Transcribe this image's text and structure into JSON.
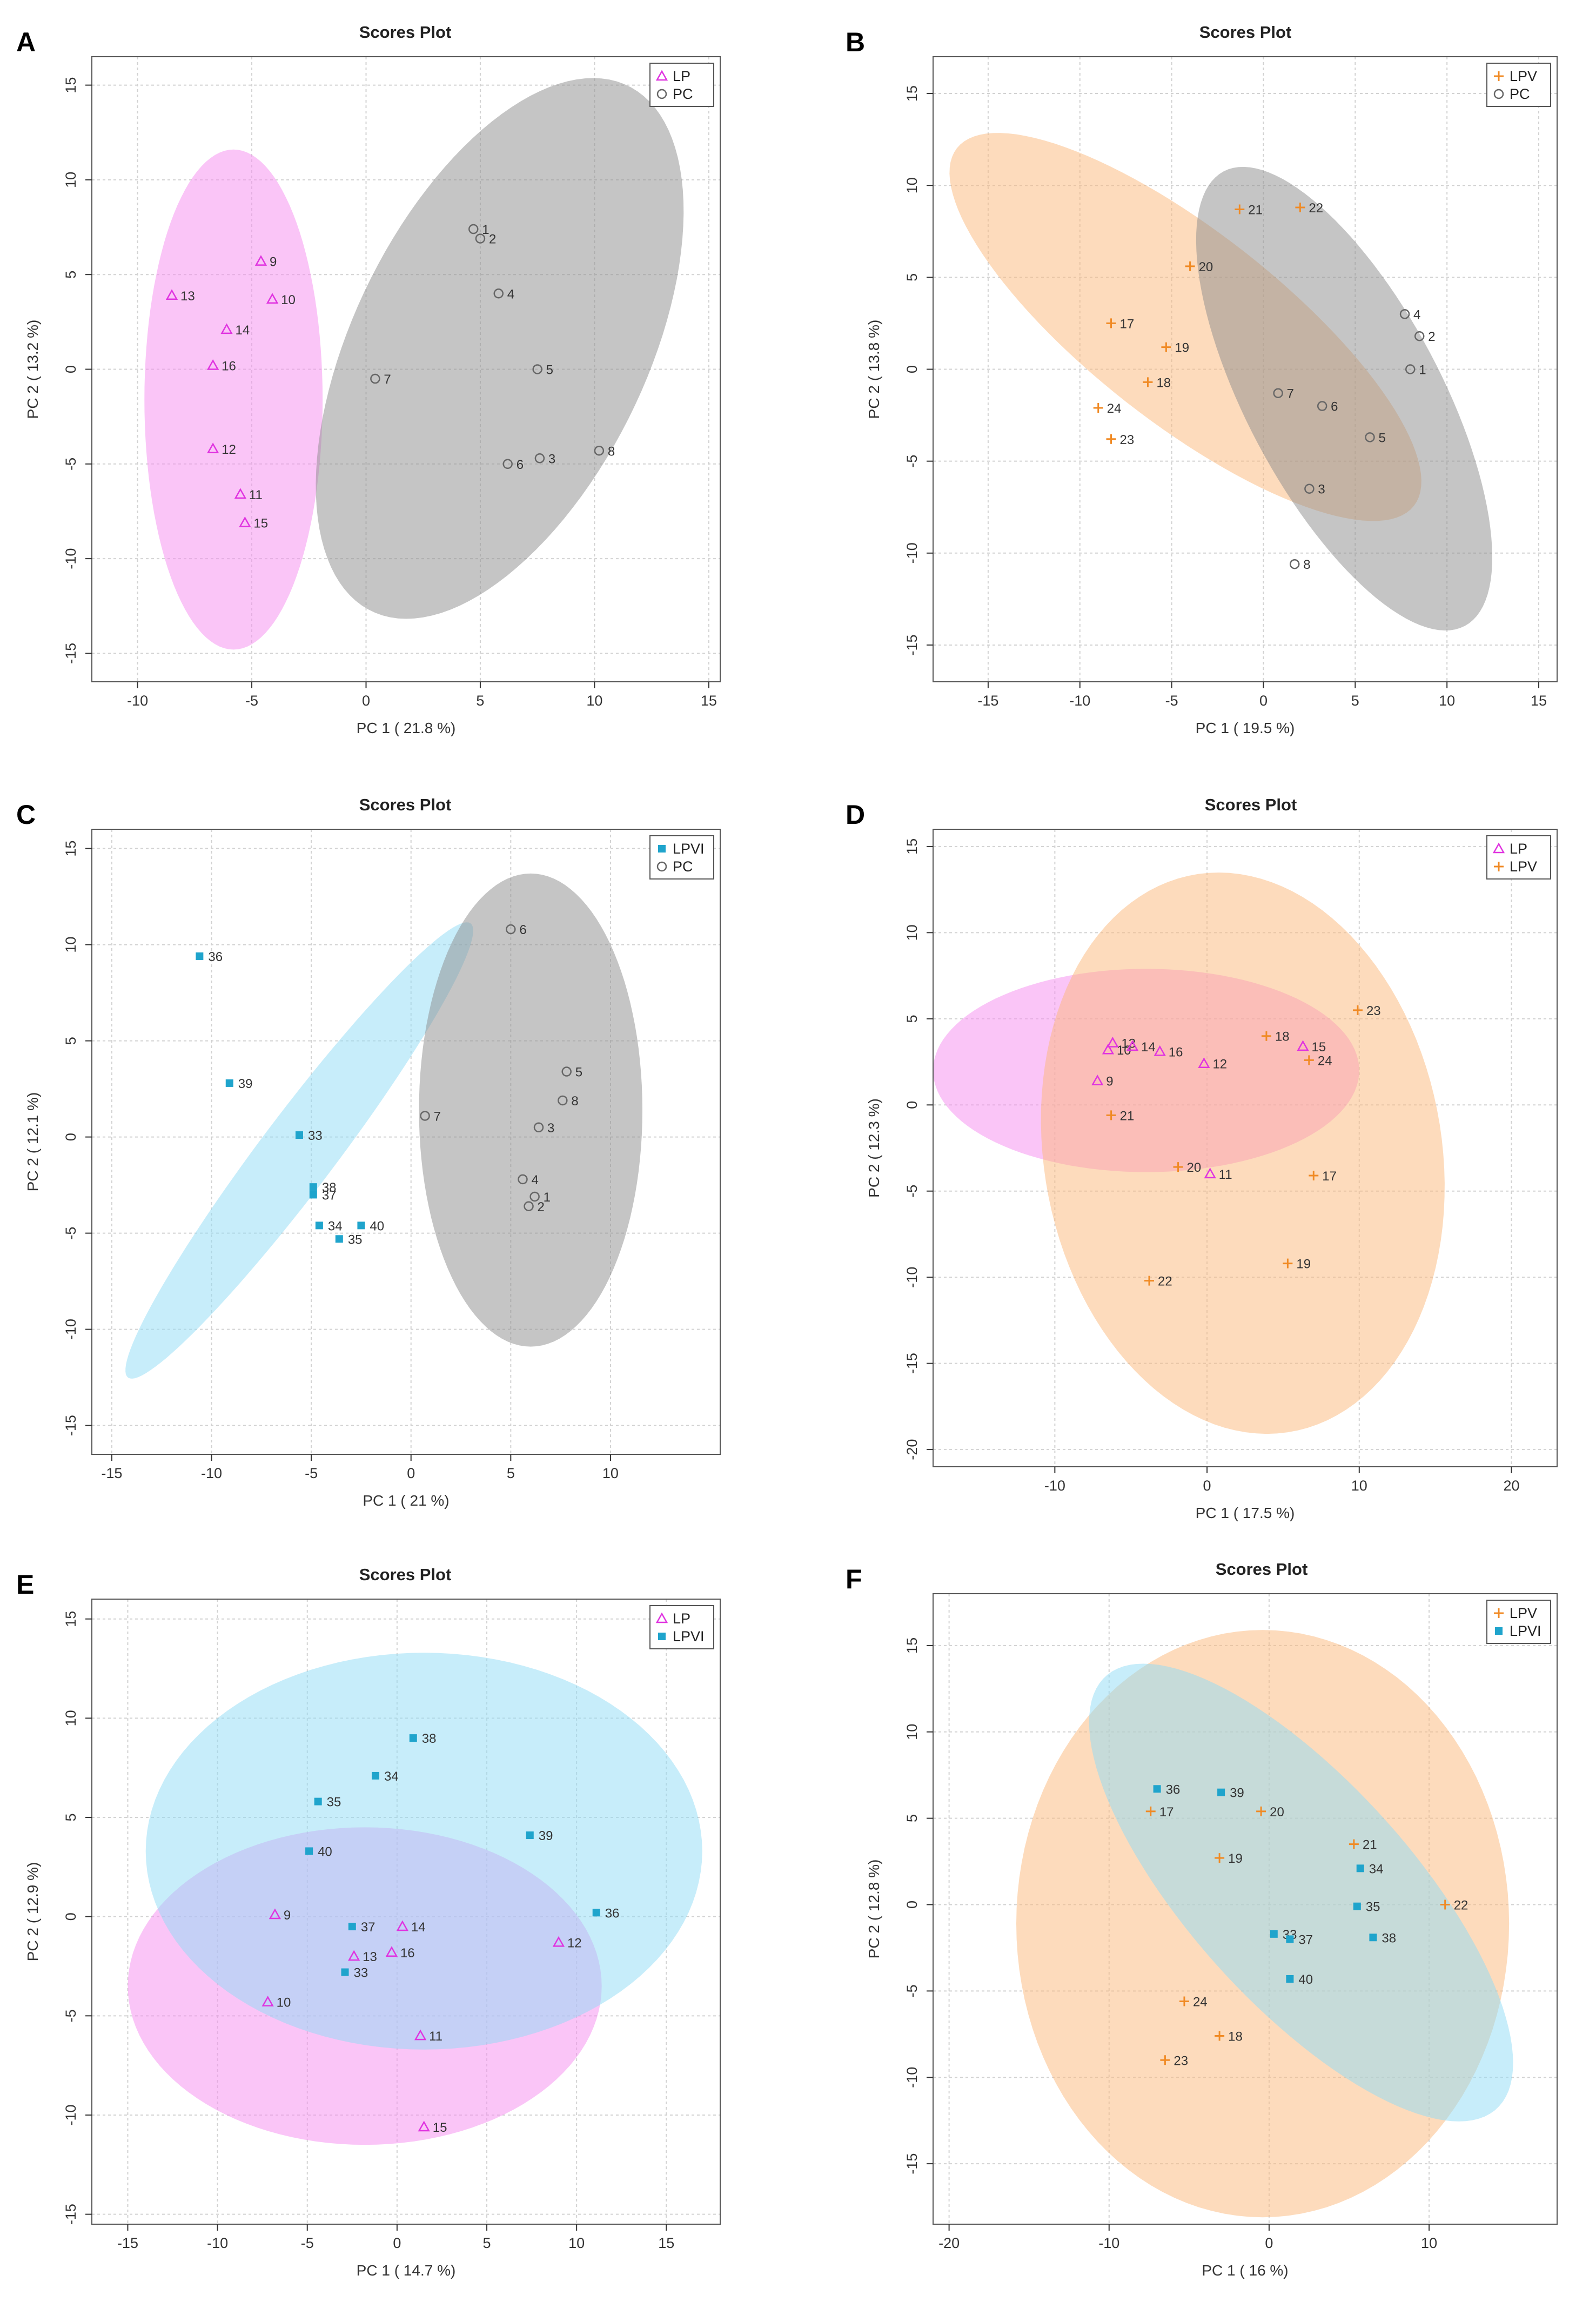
{
  "chart_data": [
    {
      "panel": "A",
      "type": "scatter",
      "title": "Scores Plot",
      "xlabel": "PC 1 ( 21.8 %)",
      "ylabel": "PC 2 ( 13.2 %)",
      "xlim": [
        -12,
        15.5
      ],
      "ylim": [
        -16.5,
        16.5
      ],
      "xticks": [
        -10,
        -5,
        0,
        5,
        10,
        15
      ],
      "yticks": [
        -15,
        -10,
        -5,
        0,
        5,
        10,
        15
      ],
      "grid": true,
      "legend_position": "top-right",
      "series": [
        {
          "name": "LP",
          "marker": "triangle",
          "color": "#e033e0",
          "ellipse_color": "#f58cf0",
          "points": [
            {
              "label": "9",
              "x": -4.6,
              "y": 5.7
            },
            {
              "label": "13",
              "x": -8.5,
              "y": 3.9
            },
            {
              "label": "10",
              "x": -4.1,
              "y": 3.7
            },
            {
              "label": "14",
              "x": -6.1,
              "y": 2.1
            },
            {
              "label": "16",
              "x": -6.7,
              "y": 0.2
            },
            {
              "label": "12",
              "x": -6.7,
              "y": -4.2
            },
            {
              "label": "11",
              "x": -5.5,
              "y": -6.6
            },
            {
              "label": "15",
              "x": -5.3,
              "y": -8.1
            }
          ],
          "ellipse": {
            "cx": -5.8,
            "cy": -1.6,
            "rx": 3.9,
            "ry": 13.2,
            "angle": 0
          }
        },
        {
          "name": "PC",
          "marker": "circle",
          "color": "#666666",
          "ellipse_color": "#8c8c8c",
          "points": [
            {
              "label": "1",
              "x": 4.7,
              "y": 7.4
            },
            {
              "label": "2",
              "x": 5.0,
              "y": 6.9
            },
            {
              "label": "4",
              "x": 5.8,
              "y": 4.0
            },
            {
              "label": "7",
              "x": 0.4,
              "y": -0.5
            },
            {
              "label": "5",
              "x": 7.5,
              "y": 0.0
            },
            {
              "label": "6",
              "x": 6.2,
              "y": -5.0
            },
            {
              "label": "3",
              "x": 7.6,
              "y": -4.7
            },
            {
              "label": "8",
              "x": 10.2,
              "y": -4.3
            }
          ],
          "ellipse": {
            "cx": 5.85,
            "cy": 1.1,
            "rx": 15.0,
            "ry": 6.6,
            "angle": 70
          }
        }
      ]
    },
    {
      "panel": "B",
      "type": "scatter",
      "title": "Scores Plot",
      "xlabel": "PC 1 ( 19.5 %)",
      "ylabel": "PC 2 ( 13.8 %)",
      "xlim": [
        -18,
        16
      ],
      "ylim": [
        -17,
        17
      ],
      "xticks": [
        -15,
        -10,
        -5,
        0,
        5,
        10,
        15
      ],
      "yticks": [
        -15,
        -10,
        -5,
        0,
        5,
        10,
        15
      ],
      "grid": true,
      "legend_position": "top-right",
      "series": [
        {
          "name": "LPV",
          "marker": "plus",
          "color": "#f08a24",
          "ellipse_color": "#fbb87a",
          "points": [
            {
              "label": "21",
              "x": -1.3,
              "y": 8.7
            },
            {
              "label": "22",
              "x": 2.0,
              "y": 8.8
            },
            {
              "label": "20",
              "x": -4.0,
              "y": 5.6
            },
            {
              "label": "17",
              "x": -8.3,
              "y": 2.5
            },
            {
              "label": "19",
              "x": -5.3,
              "y": 1.2
            },
            {
              "label": "18",
              "x": -6.3,
              "y": -0.7
            },
            {
              "label": "24",
              "x": -9.0,
              "y": -2.1
            },
            {
              "label": "23",
              "x": -8.3,
              "y": -3.8
            }
          ],
          "ellipse": {
            "cx": -4.25,
            "cy": 2.3,
            "rx": 15.8,
            "ry": 5.2,
            "angle": -38
          }
        },
        {
          "name": "PC",
          "marker": "circle",
          "color": "#666666",
          "ellipse_color": "#8c8c8c",
          "points": [
            {
              "label": "4",
              "x": 7.7,
              "y": 3.0
            },
            {
              "label": "2",
              "x": 8.5,
              "y": 1.8
            },
            {
              "label": "1",
              "x": 8.0,
              "y": 0.0
            },
            {
              "label": "7",
              "x": 0.8,
              "y": -1.3
            },
            {
              "label": "6",
              "x": 3.2,
              "y": -2.0
            },
            {
              "label": "5",
              "x": 5.8,
              "y": -3.7
            },
            {
              "label": "3",
              "x": 2.5,
              "y": -6.5
            },
            {
              "label": "8",
              "x": 1.7,
              "y": -10.6
            }
          ],
          "ellipse": {
            "cx": 4.4,
            "cy": -1.6,
            "rx": 14.0,
            "ry": 5.3,
            "angle": -62
          }
        }
      ]
    },
    {
      "panel": "C",
      "type": "scatter",
      "title": "Scores Plot",
      "xlabel": "PC 1 ( 21 %)",
      "ylabel": "PC 2 ( 12.1 %)",
      "xlim": [
        -16,
        15.5
      ],
      "ylim": [
        -16.5,
        16
      ],
      "xticks": [
        -15,
        -10,
        -5,
        0,
        5,
        10
      ],
      "yticks": [
        -15,
        -10,
        -5,
        0,
        5,
        10,
        15
      ],
      "grid": true,
      "legend_position": "top-right",
      "series": [
        {
          "name": "LPVI",
          "marker": "square",
          "color": "#1fa4cc",
          "ellipse_color": "#8fdcf5",
          "points": [
            {
              "label": "36",
              "x": -10.6,
              "y": 9.4
            },
            {
              "label": "39",
              "x": -9.1,
              "y": 2.8
            },
            {
              "label": "33",
              "x": -5.6,
              "y": 0.1
            },
            {
              "label": "38",
              "x": -4.9,
              "y": -2.6
            },
            {
              "label": "37",
              "x": -4.9,
              "y": -3.0
            },
            {
              "label": "34",
              "x": -4.6,
              "y": -4.6
            },
            {
              "label": "40",
              "x": -2.5,
              "y": -4.6
            },
            {
              "label": "35",
              "x": -3.6,
              "y": -5.3
            }
          ],
          "ellipse": {
            "cx": -5.6,
            "cy": -0.7,
            "rx": 14.6,
            "ry": 1.9,
            "angle": 54
          }
        },
        {
          "name": "PC",
          "marker": "circle",
          "color": "#666666",
          "ellipse_color": "#8c8c8c",
          "points": [
            {
              "label": "6",
              "x": 5.0,
              "y": 10.8
            },
            {
              "label": "5",
              "x": 7.8,
              "y": 3.4
            },
            {
              "label": "8",
              "x": 7.6,
              "y": 1.9
            },
            {
              "label": "7",
              "x": 0.7,
              "y": 1.1
            },
            {
              "label": "3",
              "x": 6.4,
              "y": 0.5
            },
            {
              "label": "4",
              "x": 5.6,
              "y": -2.2
            },
            {
              "label": "1",
              "x": 6.2,
              "y": -3.1
            },
            {
              "label": "2",
              "x": 5.9,
              "y": -3.6
            }
          ],
          "ellipse": {
            "cx": 6.0,
            "cy": 1.4,
            "rx": 5.6,
            "ry": 12.3,
            "angle": 0
          }
        }
      ]
    },
    {
      "panel": "D",
      "type": "scatter",
      "title": "Scores Plot",
      "xlabel": "PC 1 ( 17.5 %)",
      "ylabel": "PC 2 ( 12.3 %)",
      "xlim": [
        -18,
        23
      ],
      "ylim": [
        -21,
        16
      ],
      "xticks": [
        -10,
        0,
        10,
        20
      ],
      "yticks": [
        -20,
        -15,
        -10,
        -5,
        0,
        5,
        10,
        15
      ],
      "grid": true,
      "legend_position": "top-right",
      "series": [
        {
          "name": "LP",
          "marker": "triangle",
          "color": "#e033e0",
          "ellipse_color": "#f58cf0",
          "points": [
            {
              "label": "13",
              "x": -6.2,
              "y": 3.6
            },
            {
              "label": "10",
              "x": -6.5,
              "y": 3.2
            },
            {
              "label": "14",
              "x": -4.9,
              "y": 3.4
            },
            {
              "label": "16",
              "x": -3.1,
              "y": 3.1
            },
            {
              "label": "12",
              "x": -0.2,
              "y": 2.4
            },
            {
              "label": "15",
              "x": 6.3,
              "y": 3.4
            },
            {
              "label": "9",
              "x": -7.2,
              "y": 1.4
            },
            {
              "label": "11",
              "x": 0.2,
              "y": -4.0
            }
          ],
          "ellipse": {
            "cx": -4.0,
            "cy": 2.0,
            "rx": 14.0,
            "ry": 5.9,
            "angle": 0
          }
        },
        {
          "name": "LPV",
          "marker": "plus",
          "color": "#f08a24",
          "ellipse_color": "#fbb87a",
          "points": [
            {
              "label": "23",
              "x": 9.9,
              "y": 5.5
            },
            {
              "label": "18",
              "x": 3.9,
              "y": 4.0
            },
            {
              "label": "24",
              "x": 6.7,
              "y": 2.6
            },
            {
              "label": "21",
              "x": -6.3,
              "y": -0.6
            },
            {
              "label": "20",
              "x": -1.9,
              "y": -3.6
            },
            {
              "label": "17",
              "x": 7.0,
              "y": -4.1
            },
            {
              "label": "19",
              "x": 5.3,
              "y": -9.2
            },
            {
              "label": "22",
              "x": -3.8,
              "y": -10.2
            }
          ],
          "ellipse": {
            "cx": 2.35,
            "cy": -2.8,
            "rx": 16.5,
            "ry": 13.0,
            "angle": -75
          }
        }
      ]
    },
    {
      "panel": "E",
      "type": "scatter",
      "title": "Scores Plot",
      "xlabel": "PC 1 ( 14.7 %)",
      "ylabel": "PC 2 ( 12.9 %)",
      "xlim": [
        -17,
        18
      ],
      "ylim": [
        -15.5,
        16
      ],
      "xticks": [
        -15,
        -10,
        -5,
        0,
        5,
        10,
        15
      ],
      "yticks": [
        -15,
        -10,
        -5,
        0,
        5,
        10,
        15
      ],
      "grid": true,
      "legend_position": "top-right",
      "series": [
        {
          "name": "LP",
          "marker": "triangle",
          "color": "#e033e0",
          "ellipse_color": "#f58cf0",
          "points": [
            {
              "label": "9",
              "x": -6.8,
              "y": 0.1
            },
            {
              "label": "14",
              "x": 0.3,
              "y": -0.5
            },
            {
              "label": "12",
              "x": 9.0,
              "y": -1.3
            },
            {
              "label": "13",
              "x": -2.4,
              "y": -2.0
            },
            {
              "label": "16",
              "x": -0.3,
              "y": -1.8
            },
            {
              "label": "10",
              "x": -7.2,
              "y": -4.3
            },
            {
              "label": "11",
              "x": 1.3,
              "y": -6.0
            },
            {
              "label": "15",
              "x": 1.5,
              "y": -10.6
            }
          ],
          "ellipse": {
            "cx": -1.8,
            "cy": -3.5,
            "rx": 13.2,
            "ry": 8.0,
            "angle": 0
          }
        },
        {
          "name": "LPVI",
          "marker": "square",
          "color": "#1fa4cc",
          "ellipse_color": "#8fdcf5",
          "points": [
            {
              "label": "38",
              "x": 0.9,
              "y": 9.0
            },
            {
              "label": "34",
              "x": -1.2,
              "y": 7.1
            },
            {
              "label": "35",
              "x": -4.4,
              "y": 5.8
            },
            {
              "label": "39",
              "x": 7.4,
              "y": 4.1
            },
            {
              "label": "40",
              "x": -4.9,
              "y": 3.3
            },
            {
              "label": "36",
              "x": 11.1,
              "y": 0.2
            },
            {
              "label": "37",
              "x": -2.5,
              "y": -0.5
            },
            {
              "label": "33",
              "x": -2.9,
              "y": -2.8
            }
          ],
          "ellipse": {
            "cx": 1.5,
            "cy": 3.3,
            "rx": 15.5,
            "ry": 10.0,
            "angle": 0
          }
        }
      ]
    },
    {
      "panel": "F",
      "type": "scatter",
      "title": "Scores Plot",
      "xlabel": "PC 1 ( 16 %)",
      "ylabel": "PC 2 ( 12.8 %)",
      "xlim": [
        -21,
        18
      ],
      "ylim": [
        -18.5,
        18
      ],
      "xticks": [
        -20,
        -10,
        0,
        10
      ],
      "yticks": [
        -15,
        -10,
        -5,
        0,
        5,
        10,
        15
      ],
      "grid": true,
      "legend_position": "top-right",
      "series": [
        {
          "name": "LPV",
          "marker": "plus",
          "color": "#f08a24",
          "ellipse_color": "#fbb87a",
          "points": [
            {
              "label": "17",
              "x": -7.4,
              "y": 5.4
            },
            {
              "label": "20",
              "x": -0.5,
              "y": 5.4
            },
            {
              "label": "21",
              "x": 5.3,
              "y": 3.5
            },
            {
              "label": "19",
              "x": -3.1,
              "y": 2.7
            },
            {
              "label": "22",
              "x": 11.0,
              "y": 0.0
            },
            {
              "label": "24",
              "x": -5.3,
              "y": -5.6
            },
            {
              "label": "18",
              "x": -3.1,
              "y": -7.6
            },
            {
              "label": "23",
              "x": -6.5,
              "y": -9.0
            }
          ],
          "ellipse": {
            "cx": -0.4,
            "cy": -1.1,
            "rx": 15.4,
            "ry": 17.0,
            "angle": 0
          }
        },
        {
          "name": "LPVI",
          "marker": "square",
          "color": "#1fa4cc",
          "ellipse_color": "#8fdcf5",
          "points": [
            {
              "label": "36",
              "x": -7.0,
              "y": 6.7
            },
            {
              "label": "39",
              "x": -3.0,
              "y": 6.5
            },
            {
              "label": "34",
              "x": 5.7,
              "y": 2.1
            },
            {
              "label": "35",
              "x": 5.5,
              "y": -0.1
            },
            {
              "label": "33",
              "x": 0.3,
              "y": -1.7
            },
            {
              "label": "37",
              "x": 1.3,
              "y": -2.0
            },
            {
              "label": "38",
              "x": 6.5,
              "y": -1.9
            },
            {
              "label": "40",
              "x": 1.3,
              "y": -4.3
            }
          ],
          "ellipse": {
            "cx": 2.0,
            "cy": 0.7,
            "rx": 17.5,
            "ry": 6.7,
            "angle": -45
          }
        }
      ]
    }
  ]
}
